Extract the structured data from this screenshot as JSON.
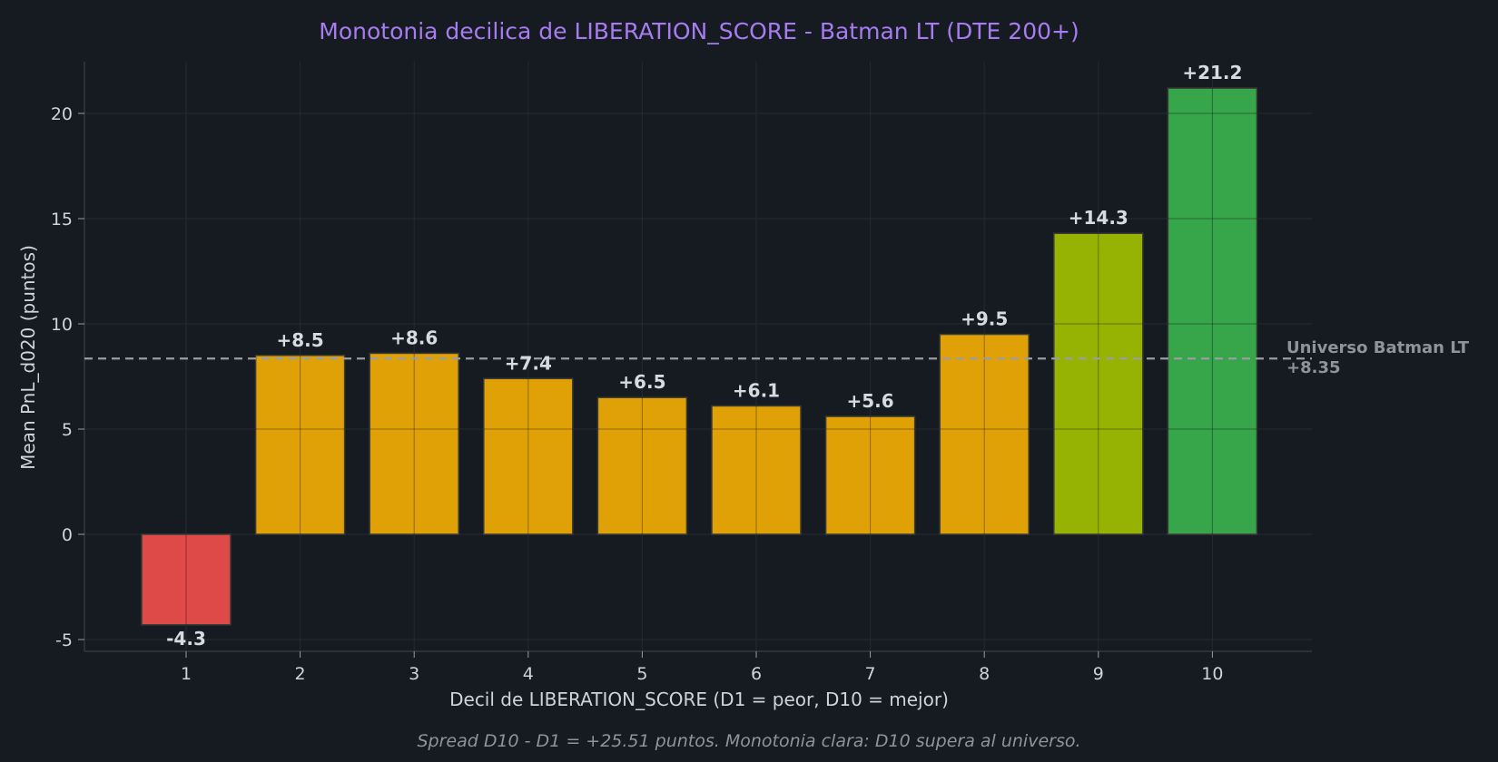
{
  "chart_data": {
    "type": "bar",
    "title": "Monotonia decilica de LIBERATION_SCORE  -  Batman LT (DTE 200+)",
    "xlabel": "Decil de LIBERATION_SCORE  (D1 = peor, D10 = mejor)",
    "ylabel": "Mean PnL_d020 (puntos)",
    "caption": "Spread D10 - D1 = +25.51 puntos. Monotonia clara: D10 supera al universo.",
    "categories": [
      "1",
      "2",
      "3",
      "4",
      "5",
      "6",
      "7",
      "8",
      "9",
      "10"
    ],
    "values": [
      -4.3,
      8.5,
      8.6,
      7.4,
      6.5,
      6.1,
      5.6,
      9.5,
      14.3,
      21.2
    ],
    "value_labels": [
      "-4.3",
      "+8.5",
      "+8.6",
      "+7.4",
      "+6.5",
      "+6.1",
      "+5.6",
      "+9.5",
      "+14.3",
      "+21.2"
    ],
    "bar_colors": [
      "#dd4a48",
      "#e0a106",
      "#e0a106",
      "#e0a106",
      "#e0a106",
      "#e0a106",
      "#e0a106",
      "#e0a106",
      "#96b304",
      "#37a54a"
    ],
    "ylim": [
      -5.5,
      20
    ],
    "yticks": [
      -5,
      0,
      5,
      10,
      15,
      20
    ],
    "reference_line": {
      "value": 8.35,
      "label": "Universo Batman LT",
      "value_label": "+8.35"
    },
    "grid": true,
    "colors": {
      "background": "#161a21",
      "title": "#a67cf0",
      "text": "#cfd3da",
      "muted": "#8f949c",
      "reference": "#9a9da3"
    }
  }
}
